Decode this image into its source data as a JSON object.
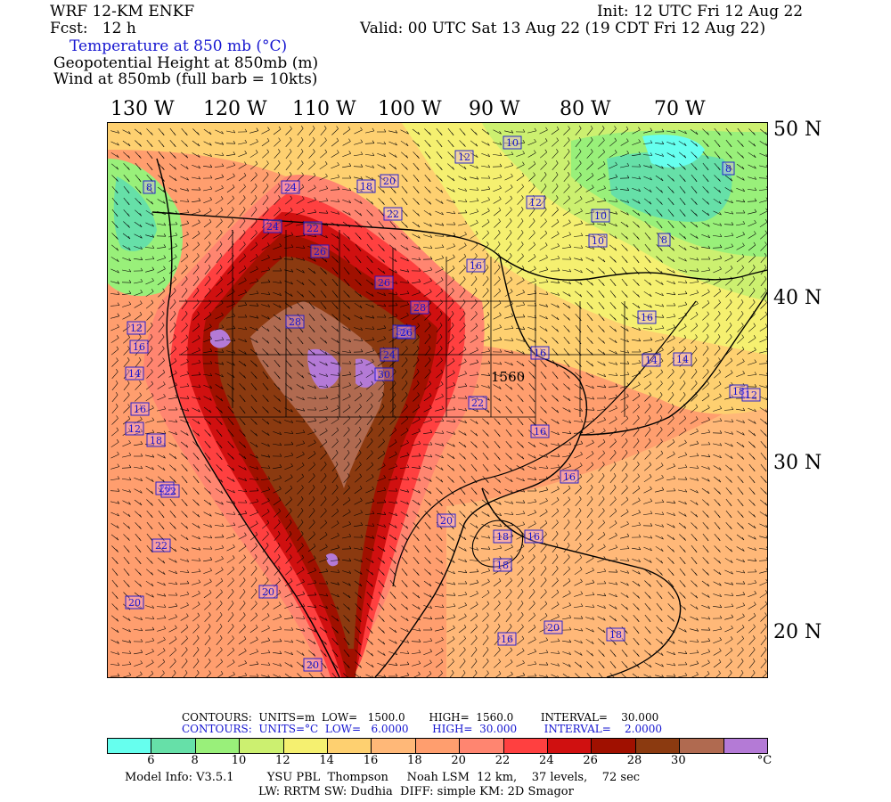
{
  "header": {
    "model": "WRF 12-KM ENKF",
    "fcst": "Fcst:   12 h",
    "init": "Init: 12 UTC Fri 12 Aug 22",
    "valid": "Valid: 00 UTC Sat 13 Aug 22 (19 CDT Fri 12 Aug 22)",
    "field1": "Temperature at 850 mb (°C)",
    "field2": "Geopotential Height at 850mb (m)",
    "field3": "Wind at 850mb (full barb = 10kts)"
  },
  "axes": {
    "lon": [
      "130 W",
      "120 W",
      "110 W",
      "100 W",
      "90 W",
      "80 W",
      "70 W"
    ],
    "lat": [
      "50 N",
      "40 N",
      "30 N",
      "20 N"
    ]
  },
  "map": {
    "contour_labels_temp": [
      "10",
      "12",
      "12",
      "10",
      "10",
      "8",
      "8",
      "8",
      "16",
      "16",
      "18",
      "20",
      "22",
      "22",
      "24",
      "24",
      "26",
      "26",
      "28",
      "30",
      "30",
      "28",
      "26",
      "24",
      "22",
      "20",
      "18",
      "16",
      "16",
      "14",
      "14",
      "12",
      "12",
      "16",
      "14",
      "16",
      "18",
      "20",
      "22",
      "20",
      "20",
      "20",
      "22",
      "18",
      "16",
      "16",
      "18",
      "18",
      "16",
      "20",
      "12"
    ],
    "height_label": "1560",
    "colors": {
      "lt6": "#66ffee",
      "6": "#66e0a8",
      "8": "#99f07a",
      "10": "#ccf070",
      "12": "#f5f070",
      "14": "#fed070",
      "16": "#ffb878",
      "18": "#ff9e6e",
      "20": "#ff8570",
      "22": "#ff4040",
      "24": "#d01010",
      "26": "#a01000",
      "28": "#8b3a10",
      "30": "#b06a50",
      "gt30": "#b47ad6"
    }
  },
  "info": {
    "contours_m": "CONTOURS:  UNITS=m  LOW=   1500.0       HIGH=  1560.0        INTERVAL=    30.000",
    "contours_c": "CONTOURS:  UNITS=°C  LOW=   6.0000       HIGH=  30.000        INTERVAL=    2.0000"
  },
  "colorbar": {
    "colors": [
      "#66ffee",
      "#66e0a8",
      "#99f07a",
      "#ccf070",
      "#f5f070",
      "#fed070",
      "#ffb878",
      "#ff9e6e",
      "#ff8570",
      "#ff4040",
      "#d01010",
      "#a01000",
      "#8b3a10",
      "#b06a50",
      "#b47ad6"
    ],
    "ticks": [
      "6",
      "8",
      "10",
      "12",
      "14",
      "16",
      "18",
      "20",
      "22",
      "24",
      "26",
      "28",
      "30"
    ],
    "unit": "°C"
  },
  "footer": {
    "line1": "Model Info: V3.5.1         YSU PBL  Thompson     Noah LSM  12 km,    37 levels,    72 sec",
    "line2": "LW: RRTM SW: Dudhia  DIFF: simple KM: 2D Smagor"
  }
}
